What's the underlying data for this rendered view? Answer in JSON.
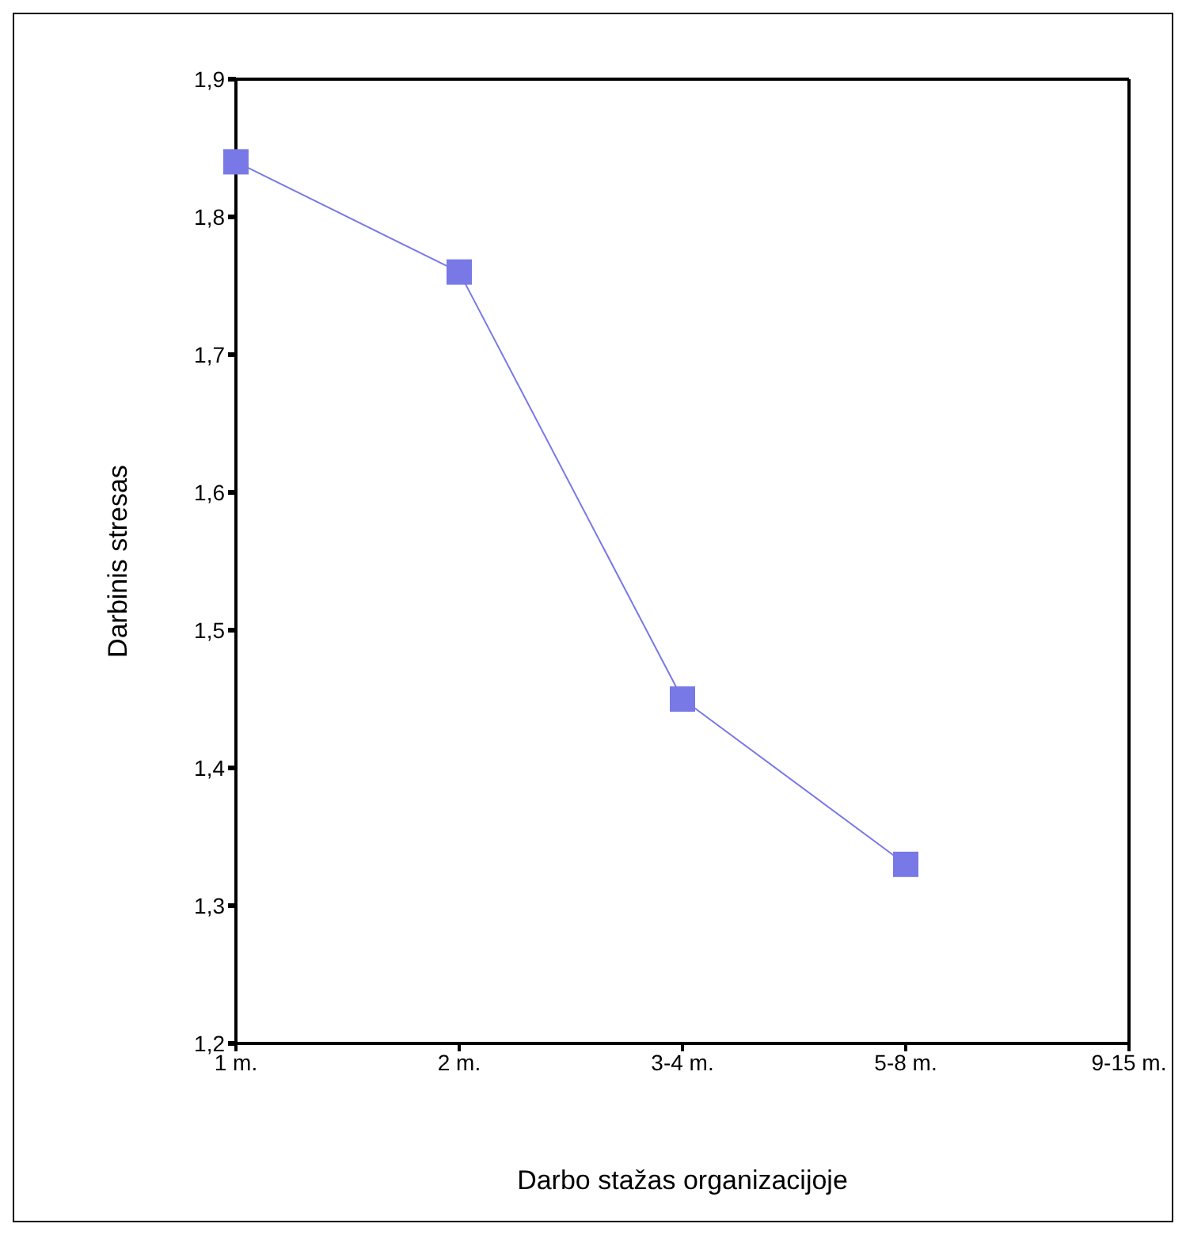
{
  "chart_data": {
    "type": "line",
    "xlabel": "Darbo stažas organizacijoje",
    "ylabel": "Darbinis stresas",
    "categories": [
      "1 m.",
      "2 m.",
      "3-4 m.",
      "5-8 m.",
      "9-15 m."
    ],
    "series": [
      {
        "color": "#7878e6",
        "values": [
          1.84,
          1.76,
          1.45,
          1.33,
          null
        ]
      }
    ],
    "ylim": [
      1.2,
      1.9
    ],
    "yticks": [
      {
        "value": 1.2,
        "label": "1,2"
      },
      {
        "value": 1.3,
        "label": "1,3"
      },
      {
        "value": 1.4,
        "label": "1,4"
      },
      {
        "value": 1.5,
        "label": "1,5"
      },
      {
        "value": 1.6,
        "label": "1,6"
      },
      {
        "value": 1.7,
        "label": "1,7"
      },
      {
        "value": 1.8,
        "label": "1,8"
      },
      {
        "value": 1.9,
        "label": "1,9"
      }
    ],
    "grid": false,
    "legend": false,
    "marker": "square",
    "line_style": "solid"
  }
}
